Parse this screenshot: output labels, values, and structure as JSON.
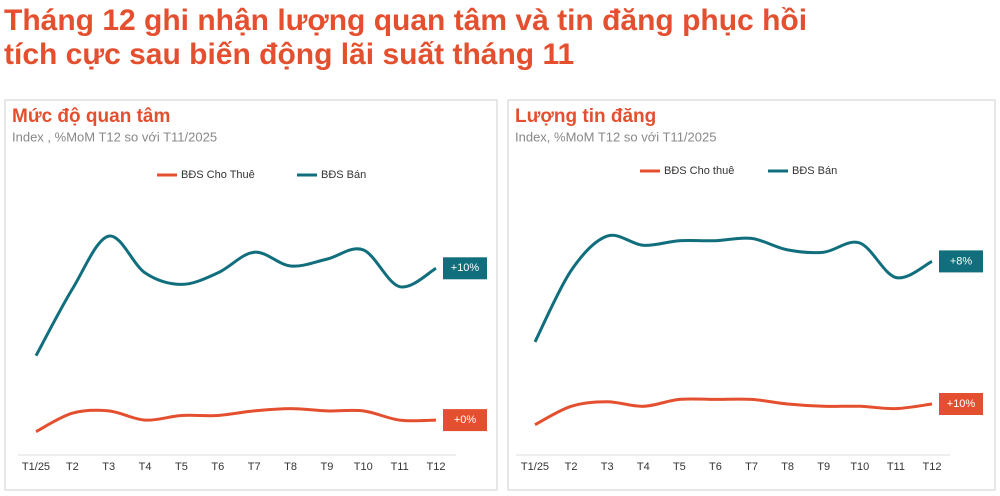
{
  "title_lines": [
    "Tháng 12 ghi nhận lượng quan tâm và tin đăng phục hồi",
    "tích cực sau biến động lãi suất tháng 11"
  ],
  "chart_data": [
    {
      "type": "line",
      "title": "Mức độ quan tâm",
      "subtitle": "Index , %MoM T12 so với T11/2025",
      "categories": [
        "T1/25",
        "T2",
        "T3",
        "T4",
        "T5",
        "T6",
        "T7",
        "T8",
        "T9",
        "T10",
        "T11",
        "T12"
      ],
      "ylim": [
        0,
        100
      ],
      "series": [
        {
          "name": "BĐS Cho Thuê",
          "color": "#e4502f",
          "values": [
            8,
            16,
            17,
            13,
            15,
            15,
            17,
            18,
            17,
            17,
            13,
            13
          ],
          "end_label": "+0%"
        },
        {
          "name": "BĐS Bán",
          "color": "#106e7d",
          "values": [
            41,
            70,
            93,
            77,
            72,
            77,
            86,
            80,
            83,
            87,
            71,
            79
          ],
          "end_label": "+10%"
        }
      ]
    },
    {
      "type": "line",
      "title": "Lượng tin đăng",
      "subtitle": "Index, %MoM T12 so với T11/2025",
      "categories": [
        "T1/25",
        "T2",
        "T3",
        "T4",
        "T5",
        "T6",
        "T7",
        "T8",
        "T9",
        "T10",
        "T11",
        "T12"
      ],
      "ylim": [
        0,
        100
      ],
      "series": [
        {
          "name": "BĐS Cho thuê",
          "color": "#e4502f",
          "values": [
            11,
            19,
            21,
            19,
            22,
            22,
            22,
            20,
            19,
            19,
            18,
            20
          ],
          "end_label": "+10%"
        },
        {
          "name": "BĐS Bán",
          "color": "#106e7d",
          "values": [
            47,
            78,
            93,
            89,
            91,
            91,
            92,
            87,
            86,
            90,
            75,
            82
          ],
          "end_label": "+8%"
        }
      ]
    }
  ]
}
